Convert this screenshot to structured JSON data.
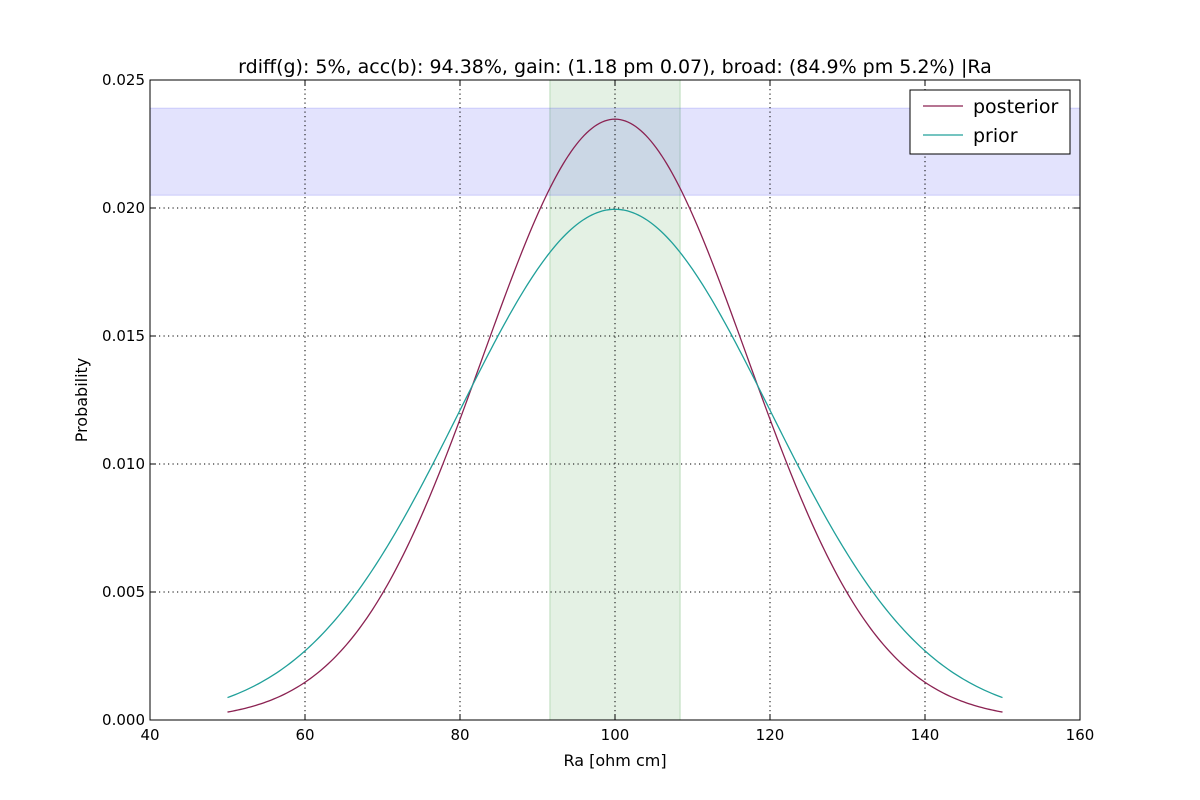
{
  "chart_data": {
    "type": "line",
    "title": "rdiff(g): 5%, acc(b): 94.38%, gain: (1.18 pm 0.07), broad: (84.9% pm 5.2%) |Ra",
    "xlabel": "Ra [ohm cm]",
    "ylabel": "Probability",
    "xlim": [
      40,
      160
    ],
    "ylim": [
      0,
      0.025
    ],
    "xticks": [
      40,
      60,
      80,
      100,
      120,
      140,
      160
    ],
    "xtick_labels": [
      "40",
      "60",
      "80",
      "100",
      "120",
      "140",
      "160"
    ],
    "yticks": [
      0.0,
      0.005,
      0.01,
      0.015,
      0.02,
      0.025
    ],
    "ytick_labels": [
      "0.000",
      "0.005",
      "0.010",
      "0.015",
      "0.020",
      "0.025"
    ],
    "grid": true,
    "legend_position": "top-right",
    "x_domain": [
      50,
      150
    ],
    "series": [
      {
        "name": "posterior",
        "color": "#8b2252",
        "distribution": "gaussian",
        "mean": 100,
        "std": 17,
        "peak": 0.02347
      },
      {
        "name": "prior",
        "color": "#20a09a",
        "distribution": "gaussian",
        "mean": 100,
        "std": 20,
        "peak": 0.01995
      }
    ],
    "bands": [
      {
        "orientation": "vertical",
        "from": 91.6,
        "to": 108.4,
        "color": "#5aa85a",
        "opacity": 0.16
      },
      {
        "orientation": "horizontal",
        "from": 0.0205,
        "to": 0.0239,
        "color": "#3c3cf0",
        "opacity": 0.14
      }
    ]
  }
}
